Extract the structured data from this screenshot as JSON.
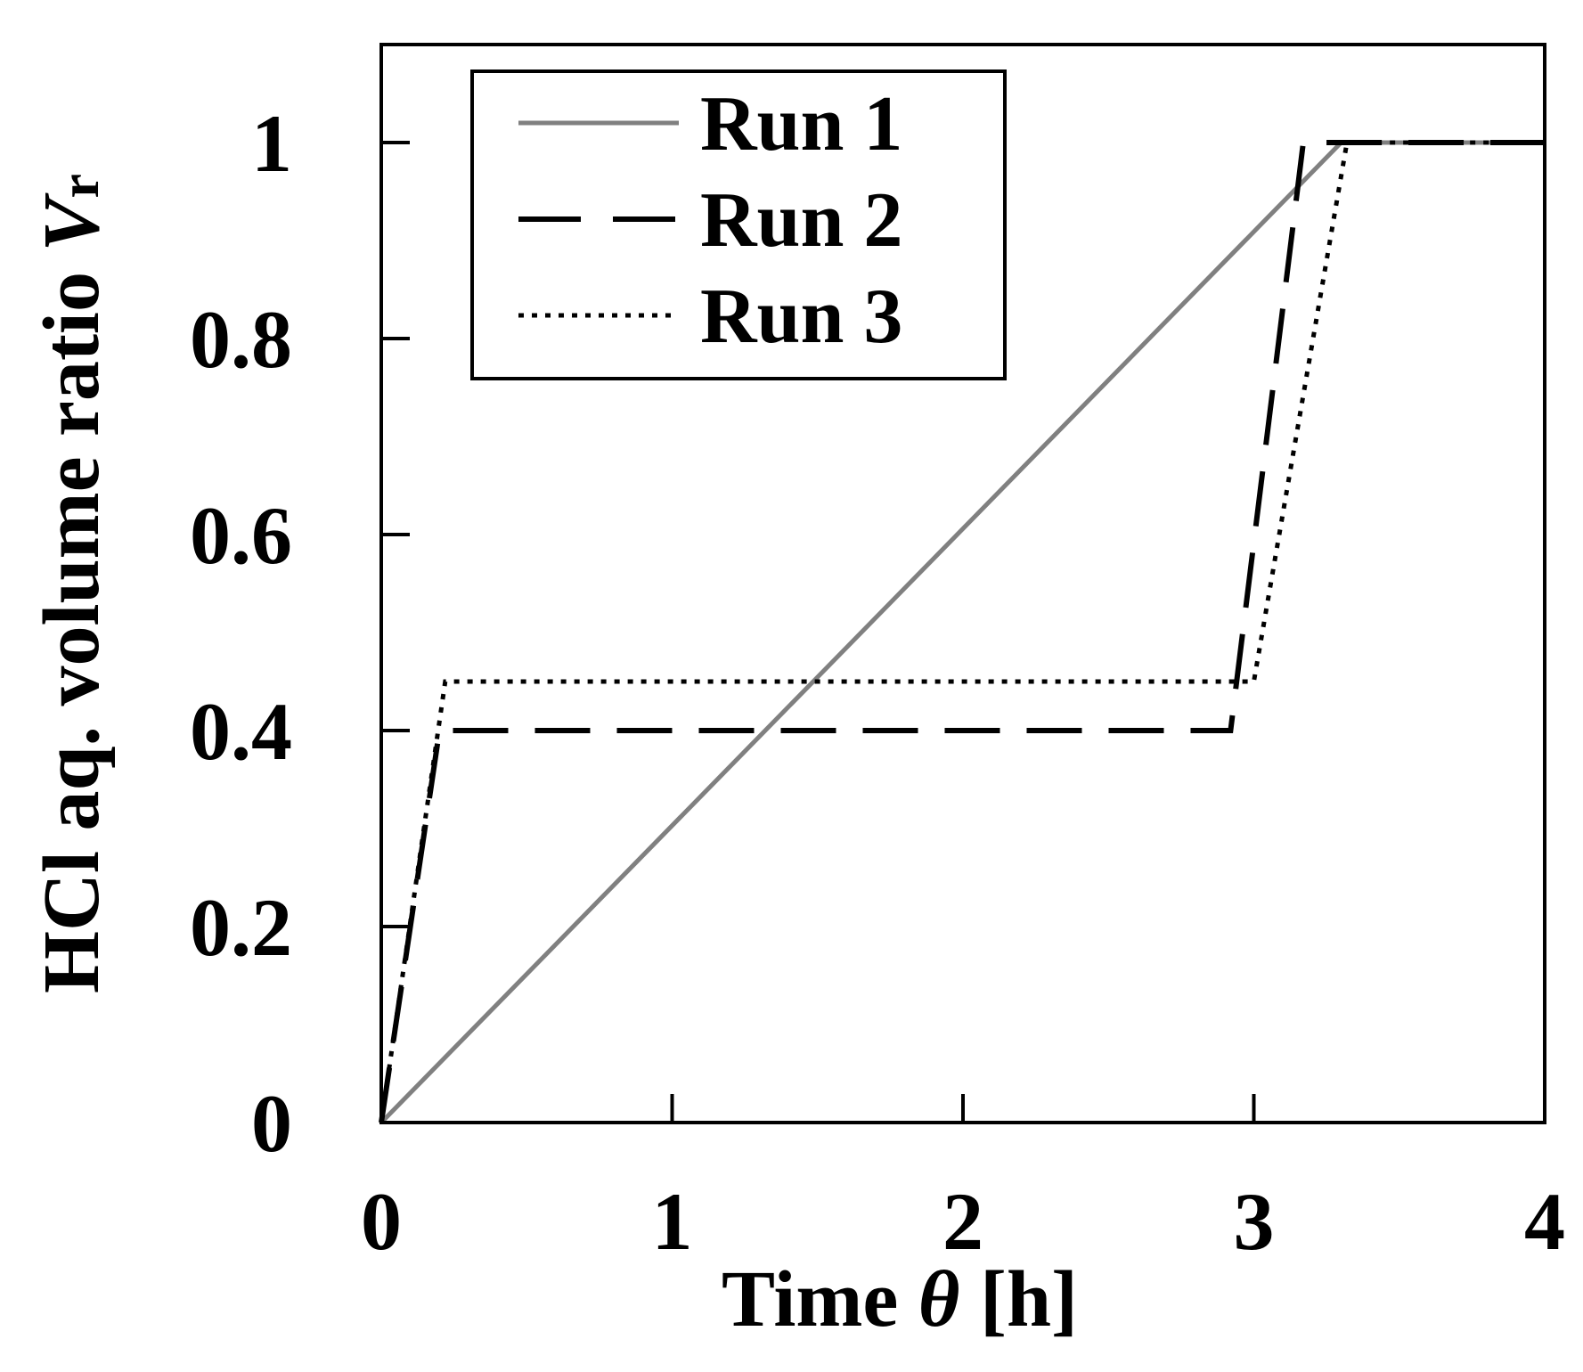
{
  "chart_data": {
    "type": "line",
    "title": "",
    "xlabel": {
      "main": "Time ",
      "symbol": "θ",
      "unit": " [h]"
    },
    "ylabel": {
      "main": "HCl aq. volume ratio ",
      "symbol": "V",
      "subscript": "r"
    },
    "xlim": [
      0,
      4
    ],
    "ylim": [
      0,
      1.1
    ],
    "x_ticks": [
      0,
      1,
      2,
      3,
      4
    ],
    "x_tick_labels": [
      "0",
      "1",
      "2",
      "3",
      "4"
    ],
    "y_ticks": [
      0,
      0.2,
      0.4,
      0.6,
      0.8,
      1
    ],
    "y_tick_labels": [
      "0",
      "0.2",
      "0.4",
      "0.6",
      "0.8",
      "1"
    ],
    "grid": false,
    "legend_position": "top-left",
    "series": [
      {
        "name": "Run 1",
        "style": "solid",
        "color": "#808080",
        "points": [
          [
            0,
            0
          ],
          [
            3.3,
            1
          ],
          [
            4,
            1
          ]
        ]
      },
      {
        "name": "Run 2",
        "style": "dashed",
        "color": "#000000",
        "points": [
          [
            0,
            0
          ],
          [
            0.2,
            0.4
          ],
          [
            2.92,
            0.4
          ],
          [
            3.17,
            1
          ],
          [
            4,
            1
          ]
        ]
      },
      {
        "name": "Run 3",
        "style": "dotted",
        "color": "#000000",
        "points": [
          [
            0,
            0
          ],
          [
            0.22,
            0.45
          ],
          [
            3.0,
            0.45
          ],
          [
            3.32,
            1
          ],
          [
            4,
            1
          ]
        ]
      }
    ]
  }
}
